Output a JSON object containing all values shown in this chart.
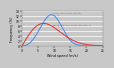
{
  "title": "",
  "xlabel": "Wind speed (m/s)",
  "ylabel": "Frequency (%)",
  "background_color": "#c8c8c8",
  "plot_background": "#c8c8c8",
  "grid_color": "#ffffff",
  "site_A": {
    "label": "West Atlantic coast type (site A)",
    "label2": "k = 2",
    "color": "#dd3333",
    "k": 2.0,
    "c": 9.5
  },
  "site_B": {
    "label": "Trade wind type (site B)",
    "label2": "k = 3",
    "color": "#4488ee",
    "k": 3.3,
    "c": 10.2
  },
  "xlim": [
    0,
    25
  ],
  "ylim": [
    0,
    14
  ],
  "x_ticks": [
    0,
    5,
    10,
    15,
    20,
    25
  ],
  "y_ticks": [
    0,
    2,
    4,
    6,
    8,
    10,
    12,
    14
  ]
}
